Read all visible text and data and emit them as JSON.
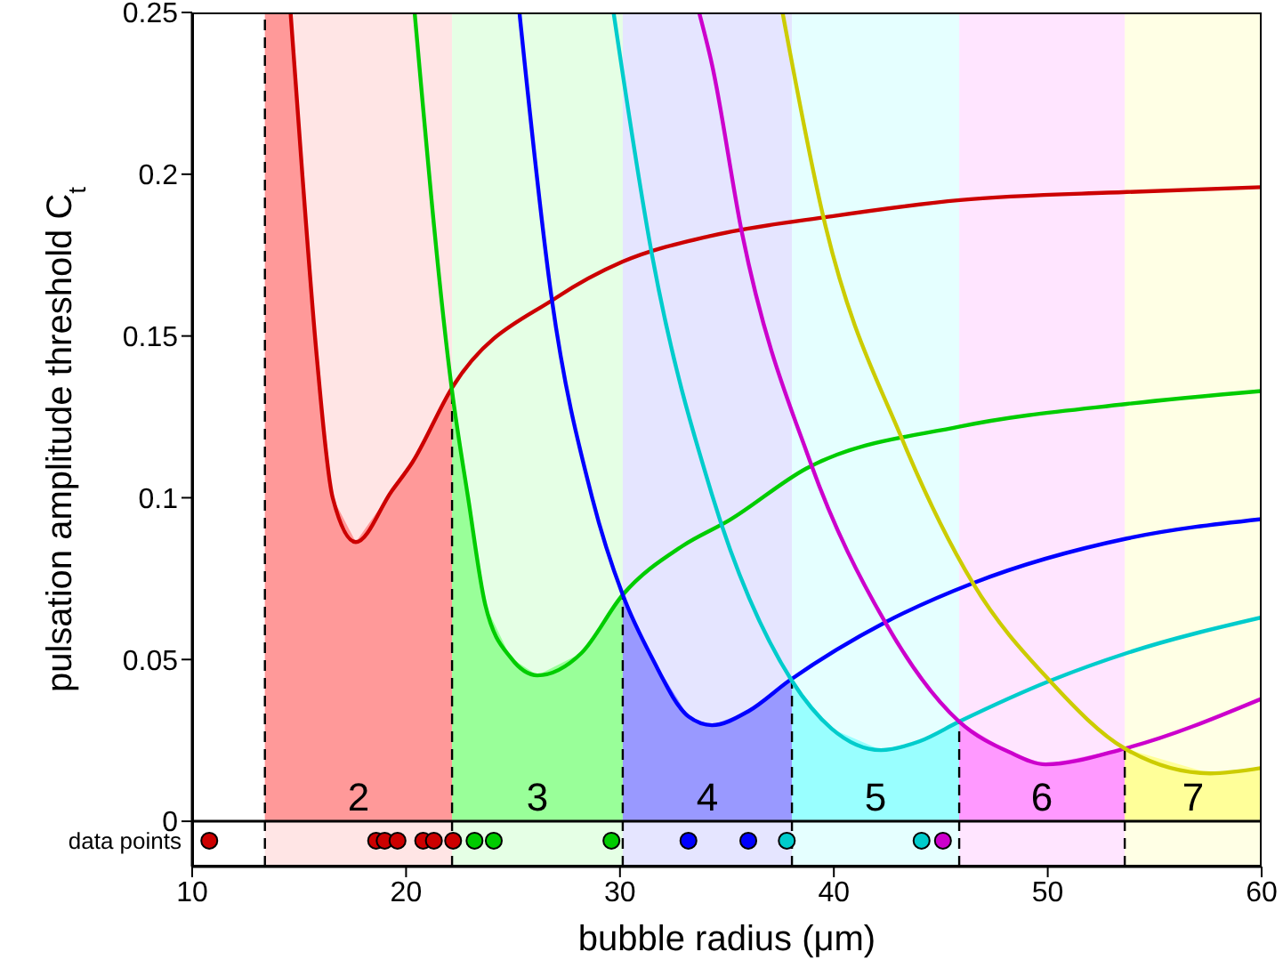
{
  "chart_data": {
    "type": "line",
    "xlabel": "bubble radius (μm)",
    "ylabel": "pulsation amplitude threshold C$_{t}$",
    "xlim": [
      10,
      60
    ],
    "xticks": [
      10,
      20,
      30,
      40,
      50,
      60
    ],
    "ylim": [
      -0.014,
      0.25
    ],
    "yticks": [
      0,
      0.05,
      0.1,
      0.15,
      0.2,
      0.25
    ],
    "grid": false,
    "legend": false,
    "bands": [
      {
        "axis": "x",
        "from": 13.4,
        "to": 22.15,
        "color": "#ffe5e5",
        "label": "2"
      },
      {
        "axis": "x",
        "from": 22.15,
        "to": 30.13,
        "color": "#e5ffe5",
        "label": "3"
      },
      {
        "axis": "x",
        "from": 30.13,
        "to": 38.04,
        "color": "#e5e5ff",
        "label": "4"
      },
      {
        "axis": "x",
        "from": 38.04,
        "to": 45.86,
        "color": "#e5ffff",
        "label": "5"
      },
      {
        "axis": "x",
        "from": 45.86,
        "to": 53.6,
        "color": "#ffe5ff",
        "label": "6"
      },
      {
        "axis": "x",
        "from": 53.6,
        "to": 60,
        "color": "#ffffe5",
        "label": "7"
      }
    ],
    "ref_lines": [
      {
        "axis": "y",
        "value": 0,
        "color": "#000000",
        "line_style": "solid"
      },
      {
        "axis": "x",
        "value": 13.4,
        "color": "#000000",
        "line_style": "dashed"
      },
      {
        "axis": "x",
        "value": 22.15,
        "color": "#000000",
        "line_style": "dashed"
      },
      {
        "axis": "x",
        "value": 30.13,
        "color": "#000000",
        "line_style": "dashed"
      },
      {
        "axis": "x",
        "value": 38.04,
        "color": "#000000",
        "line_style": "dashed"
      },
      {
        "axis": "x",
        "value": 45.86,
        "color": "#000000",
        "line_style": "dashed"
      },
      {
        "axis": "x",
        "value": 53.6,
        "color": "#000000",
        "line_style": "dashed"
      }
    ],
    "series": [
      {
        "type": "area",
        "color": "#ff9999",
        "x": [
          13.4,
          14.6,
          15.16,
          15.82,
          16.57,
          17.65,
          19.32,
          20.3,
          22.15
        ],
        "values": [
          0.25,
          0.25,
          0.199,
          0.144,
          0.1,
          0.0863,
          0.102,
          0.111,
          0.134
        ]
      },
      {
        "type": "area",
        "color": "#99ff99",
        "x": [
          22.15,
          22.9,
          23.7,
          24.9,
          26.14,
          28.2,
          30.13
        ],
        "values": [
          0.133,
          0.1,
          0.067,
          0.0505,
          0.0451,
          0.052,
          0.07
        ]
      },
      {
        "type": "area",
        "color": "#9999ff",
        "x": [
          30.13,
          31.5,
          33.2,
          34.3,
          36,
          38.04
        ],
        "values": [
          0.07,
          0.0505,
          0.0324,
          0.0297,
          0.034,
          0.0434
        ]
      },
      {
        "type": "area",
        "color": "#99ffff",
        "x": [
          38.04,
          39.9,
          42.2,
          44,
          45.86
        ],
        "values": [
          0.0434,
          0.0286,
          0.022,
          0.0247,
          0.0308
        ]
      },
      {
        "type": "area",
        "color": "#ff99ff",
        "x": [
          45.86,
          48.2,
          49.9,
          53.6
        ],
        "values": [
          0.0308,
          0.0214,
          0.0176,
          0.0225
        ]
      },
      {
        "type": "area",
        "color": "#ffff99",
        "x": [
          53.6,
          57.6,
          60
        ],
        "values": [
          0.0225,
          0.0148,
          0.0165
        ]
      },
      {
        "color": "#cc0000",
        "marker": "none",
        "x": [
          14.6,
          15.16,
          15.82,
          16.57,
          17.65,
          19.32,
          20.3,
          22.15,
          27.06,
          30.13,
          34.3,
          39.9,
          45.9,
          53.7,
          60
        ],
        "values": [
          0.25,
          0.199,
          0.144,
          0.1,
          0.0863,
          0.102,
          0.111,
          0.134,
          0.162,
          0.173,
          0.181,
          0.187,
          0.192,
          0.1945,
          0.196
        ]
      },
      {
        "color": "#00cc00",
        "marker": "none",
        "x": [
          20.4,
          22.15,
          22.9,
          23.7,
          24.9,
          26.14,
          28.2,
          30.13,
          32.9,
          35.1,
          38.7,
          45.9,
          53.7,
          60
        ],
        "values": [
          0.25,
          0.133,
          0.1,
          0.067,
          0.0505,
          0.0451,
          0.052,
          0.07,
          0.085,
          0.093,
          0.109,
          0.122,
          0.129,
          0.133
        ]
      },
      {
        "color": "#0000ff",
        "marker": "none",
        "x": [
          25.3,
          26.8,
          28.7,
          30.13,
          31.5,
          33.2,
          34.3,
          36,
          37.9,
          42.4,
          46.5,
          53.7,
          60
        ],
        "values": [
          0.25,
          0.162,
          0.1,
          0.07,
          0.0505,
          0.0324,
          0.0297,
          0.034,
          0.0434,
          0.0615,
          0.0736,
          0.0874,
          0.0934
        ]
      },
      {
        "color": "#00cccc",
        "marker": "none",
        "x": [
          29.7,
          31.5,
          34.3,
          38.04,
          39.9,
          42.2,
          44,
          45.86,
          50.1,
          53.7,
          60
        ],
        "values": [
          0.25,
          0.175,
          0.101,
          0.0434,
          0.0286,
          0.022,
          0.0247,
          0.0308,
          0.0434,
          0.052,
          0.063
        ]
      },
      {
        "color": "#cc00cc",
        "marker": "none",
        "x": [
          33.7,
          34.3,
          35.7,
          38.9,
          42.4,
          45.86,
          48.2,
          49.9,
          53.6,
          60
        ],
        "values": [
          0.25,
          0.234,
          0.182,
          0.111,
          0.0615,
          0.0308,
          0.0214,
          0.0176,
          0.0225,
          0.0379
        ]
      },
      {
        "color": "#cccc00",
        "marker": "none",
        "x": [
          37.6,
          39.5,
          43.2,
          46.5,
          50.1,
          53.6,
          57.6,
          60
        ],
        "values": [
          0.25,
          0.187,
          0.118,
          0.0736,
          0.0434,
          0.0225,
          0.0148,
          0.0165
        ]
      },
      {
        "type": "scatter",
        "color": "#cc0000",
        "marker": "circle",
        "x": [
          10.8,
          18.6,
          19.0,
          19.6,
          20.8,
          21.3,
          22.2
        ],
        "values": [
          -0.006,
          -0.006,
          -0.006,
          -0.006,
          -0.006,
          -0.006,
          -0.006
        ]
      },
      {
        "type": "scatter",
        "color": "#00cc00",
        "marker": "circle",
        "x": [
          23.2,
          24.1,
          29.6
        ],
        "values": [
          -0.006,
          -0.006,
          -0.006
        ]
      },
      {
        "type": "scatter",
        "color": "#0000ff",
        "marker": "circle",
        "x": [
          33.2,
          36.0
        ],
        "values": [
          -0.006,
          -0.006
        ]
      },
      {
        "type": "scatter",
        "color": "#00cccc",
        "marker": "circle",
        "x": [
          37.8,
          44.1
        ],
        "values": [
          -0.006,
          -0.006
        ]
      },
      {
        "type": "scatter",
        "color": "#cc00cc",
        "marker": "circle",
        "x": [
          45.1
        ],
        "values": [
          -0.006
        ]
      }
    ],
    "annotations": [
      "data points"
    ]
  }
}
